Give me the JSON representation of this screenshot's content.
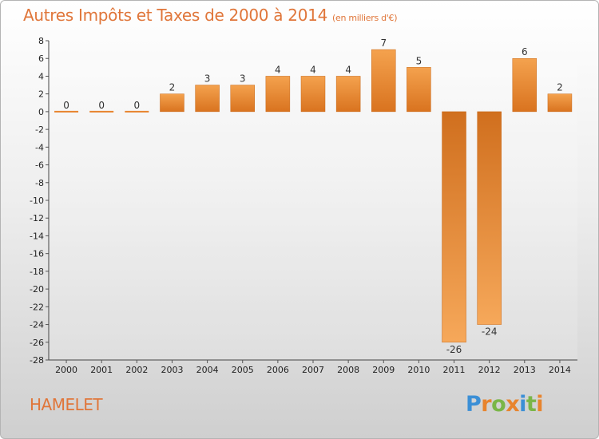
{
  "chart_data": {
    "type": "bar",
    "title": "Autres Impôts et Taxes de 2000 à 2014",
    "subtitle": "(en milliers d'€)",
    "xlabel": "",
    "ylabel": "",
    "categories": [
      "2000",
      "2001",
      "2002",
      "2003",
      "2004",
      "2005",
      "2006",
      "2007",
      "2008",
      "2009",
      "2010",
      "2011",
      "2012",
      "2013",
      "2014"
    ],
    "values": [
      0,
      0,
      0,
      2,
      3,
      3,
      4,
      4,
      4,
      7,
      5,
      -26,
      -24,
      6,
      2
    ],
    "data_labels": [
      "0",
      "0",
      "0",
      "2",
      "3",
      "3",
      "4",
      "4",
      "4",
      "7",
      "5",
      "-26",
      "-24",
      "6",
      "2"
    ],
    "ylim": [
      -28,
      8
    ],
    "yticks": [
      8,
      6,
      4,
      2,
      0,
      -2,
      -4,
      -6,
      -8,
      -10,
      -12,
      -14,
      -16,
      -18,
      -20,
      -22,
      -24,
      -26,
      -28
    ],
    "grid": false,
    "legend": "none",
    "bar_color": "#e8842e"
  },
  "place": "HAMELET",
  "logo": {
    "text": "Proxiti",
    "letters": [
      {
        "ch": "P",
        "color": "#3b8fd6"
      },
      {
        "ch": "r",
        "color": "#e8842e"
      },
      {
        "ch": "o",
        "color": "#7ab648"
      },
      {
        "ch": "x",
        "color": "#e8842e"
      },
      {
        "ch": "i",
        "color": "#3b8fd6"
      },
      {
        "ch": "t",
        "color": "#7ab648"
      },
      {
        "ch": "i",
        "color": "#e8842e"
      }
    ]
  }
}
